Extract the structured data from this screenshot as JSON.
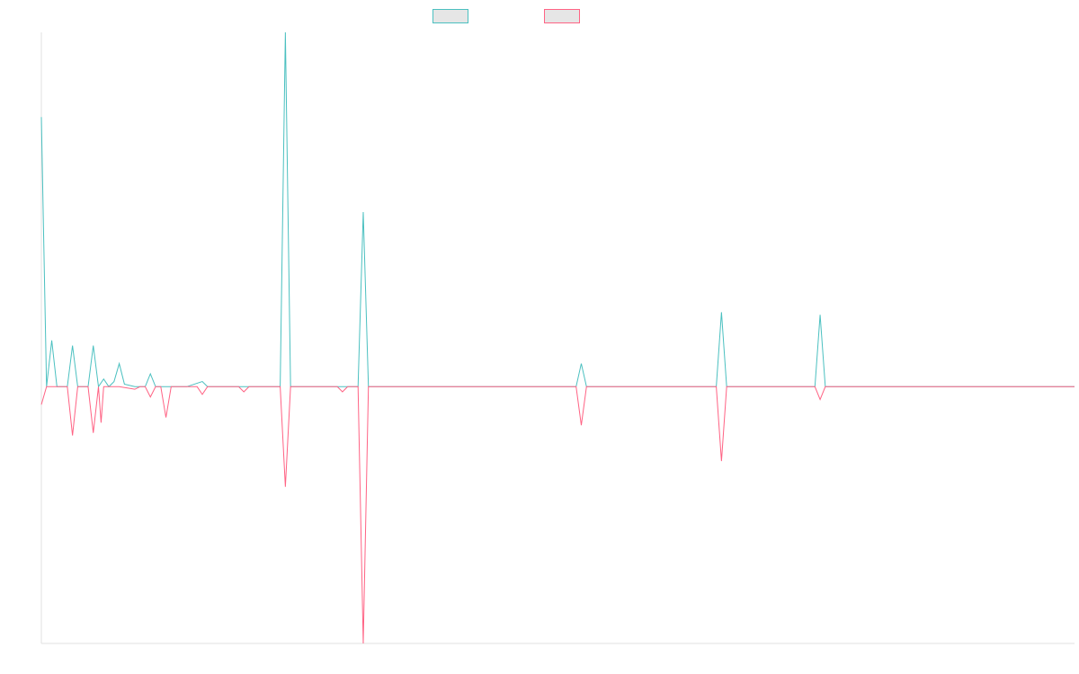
{
  "colors": {
    "series_a": "#4bc0c0",
    "series_b": "#ff6384",
    "legend_fill": "#e6e6e6",
    "axis": "#e0e0e0"
  },
  "chart_data": {
    "type": "line",
    "title": "",
    "xlabel": "",
    "ylabel": "",
    "legend_position": "top-center",
    "grid": false,
    "x_count": 200,
    "xlim": [
      0,
      199
    ],
    "ylim": [
      -100,
      138
    ],
    "series": [
      {
        "name": "",
        "color": "#4bc0c0",
        "points": [
          [
            0,
            105
          ],
          [
            1,
            0
          ],
          [
            2,
            18
          ],
          [
            3,
            0
          ],
          [
            5,
            0
          ],
          [
            6,
            16
          ],
          [
            7,
            0
          ],
          [
            9,
            0
          ],
          [
            10,
            16
          ],
          [
            11,
            0
          ],
          [
            12,
            3
          ],
          [
            13,
            0
          ],
          [
            14,
            2
          ],
          [
            15,
            9
          ],
          [
            16,
            1
          ],
          [
            18,
            0
          ],
          [
            19,
            0
          ],
          [
            20,
            0
          ],
          [
            21,
            5
          ],
          [
            22,
            0
          ],
          [
            27,
            0
          ],
          [
            28,
            0
          ],
          [
            31,
            2
          ],
          [
            32,
            0
          ],
          [
            40,
            0
          ],
          [
            46,
            0
          ],
          [
            47,
            138
          ],
          [
            48,
            0
          ],
          [
            54,
            0
          ],
          [
            55,
            0
          ],
          [
            56,
            0
          ],
          [
            57,
            0
          ],
          [
            58,
            0
          ],
          [
            59,
            0
          ],
          [
            60,
            0
          ],
          [
            61,
            0
          ],
          [
            62,
            68
          ],
          [
            63,
            0
          ],
          [
            103,
            0
          ],
          [
            104,
            9
          ],
          [
            105,
            0
          ],
          [
            130,
            0
          ],
          [
            131,
            29
          ],
          [
            132,
            0
          ],
          [
            149,
            0
          ],
          [
            150,
            28
          ],
          [
            151,
            0
          ],
          [
            199,
            0
          ]
        ]
      },
      {
        "name": "",
        "color": "#ff6384",
        "points": [
          [
            0,
            -7
          ],
          [
            1,
            0
          ],
          [
            5,
            0
          ],
          [
            6,
            -19
          ],
          [
            7,
            0
          ],
          [
            9,
            0
          ],
          [
            10,
            -18
          ],
          [
            11,
            0
          ],
          [
            11.5,
            -14
          ],
          [
            12,
            0
          ],
          [
            15,
            0
          ],
          [
            18,
            -1
          ],
          [
            19,
            0
          ],
          [
            20,
            0
          ],
          [
            21,
            -4
          ],
          [
            22,
            0
          ],
          [
            23,
            0
          ],
          [
            24,
            -12
          ],
          [
            25,
            0
          ],
          [
            30,
            0
          ],
          [
            31,
            -3
          ],
          [
            32,
            0
          ],
          [
            38,
            0
          ],
          [
            39,
            -2
          ],
          [
            40,
            0
          ],
          [
            46,
            0
          ],
          [
            47,
            -39
          ],
          [
            48,
            0
          ],
          [
            57,
            0
          ],
          [
            58,
            -2
          ],
          [
            59,
            0
          ],
          [
            61,
            0
          ],
          [
            62,
            -100
          ],
          [
            63,
            0
          ],
          [
            103,
            0
          ],
          [
            104,
            -15
          ],
          [
            105,
            0
          ],
          [
            130,
            0
          ],
          [
            131,
            -29
          ],
          [
            132,
            0
          ],
          [
            149,
            0
          ],
          [
            150,
            -5
          ],
          [
            151,
            0
          ],
          [
            199,
            0
          ]
        ]
      }
    ]
  }
}
